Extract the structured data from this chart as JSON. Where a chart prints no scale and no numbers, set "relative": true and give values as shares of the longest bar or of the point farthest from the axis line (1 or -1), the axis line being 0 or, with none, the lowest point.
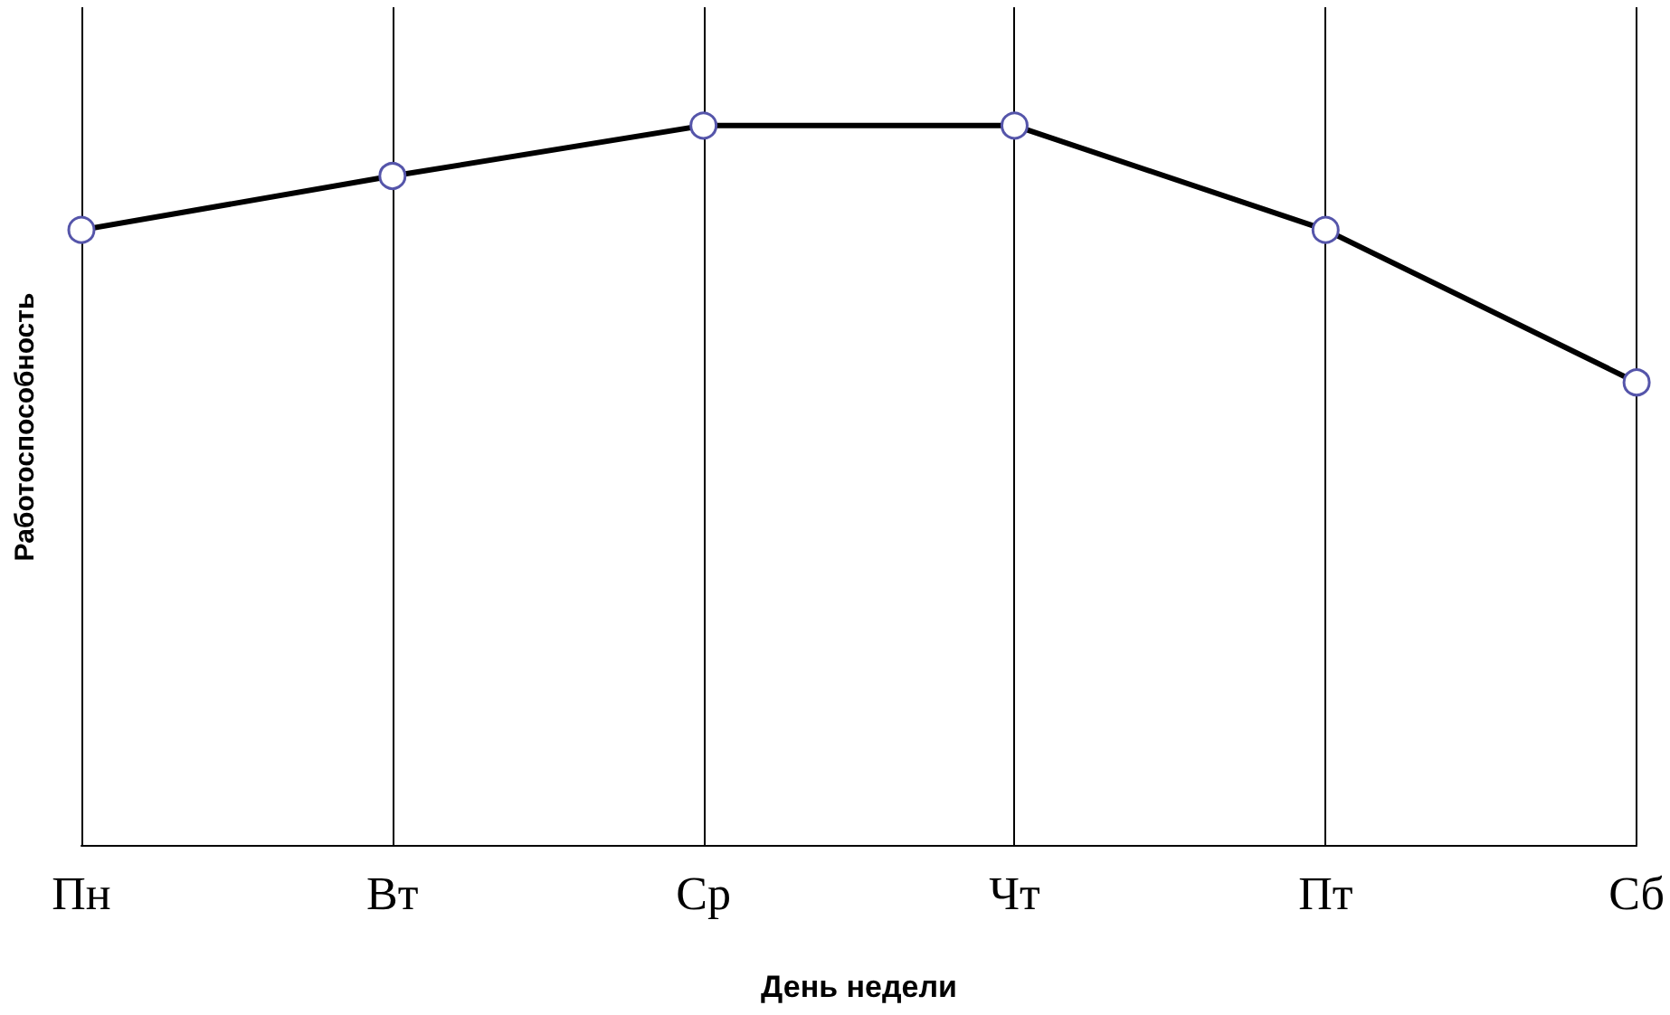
{
  "chart_data": {
    "type": "line",
    "relative": true,
    "xlabel": "День недели",
    "ylabel": "Работоспособность",
    "categories": [
      "Пн",
      "Вт",
      "Ср",
      "Чт",
      "Пт",
      "Сб"
    ],
    "series": [
      {
        "color": "#000000",
        "values": [
          0.855,
          0.93,
          1,
          1,
          0.855,
          0.643
        ]
      }
    ],
    "grid": "x",
    "marker": "circle",
    "line_style": "solid"
  }
}
